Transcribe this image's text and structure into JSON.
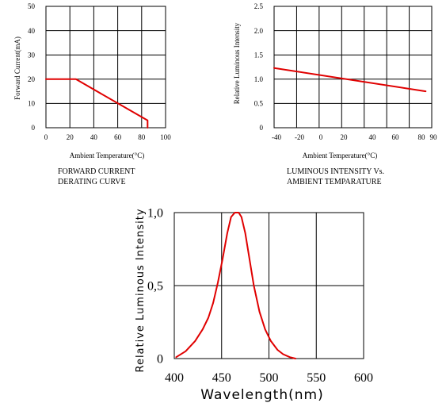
{
  "chart_data": [
    {
      "type": "line",
      "caption": [
        "FORWARD CURRENT",
        "DERATING CURVE"
      ],
      "xlabel": "Ambient Temperature(°C)",
      "ylabel": "Forward Current(mA)",
      "xlim": [
        0,
        100
      ],
      "ylim": [
        0,
        50
      ],
      "xticks": [
        "0",
        "20",
        "40",
        "60",
        "80",
        "100"
      ],
      "yticks": [
        "0",
        "10",
        "20",
        "30",
        "40",
        "50"
      ],
      "grid": true,
      "series": [
        {
          "x": [
            0,
            25,
            85,
            85
          ],
          "y": [
            20,
            20,
            3,
            0
          ],
          "color": "#e00000"
        }
      ]
    },
    {
      "type": "line",
      "caption": [
        "LUMINOUS INTENSITY Vs.",
        "AMBIENT TEMPARATURE"
      ],
      "xlabel": "Ambient Temperature(°C)",
      "ylabel": "Relative Luminous Intensity",
      "xlim": [
        -40,
        90
      ],
      "ylim": [
        0,
        2.5
      ],
      "xticks": [
        "-40",
        "-20",
        "0",
        "20",
        "40",
        "60",
        "80",
        "90"
      ],
      "yticks": [
        "0",
        "0.5",
        "1.0",
        "1.5",
        "2.0",
        "2.5"
      ],
      "grid": true,
      "series": [
        {
          "x": [
            -40,
            85
          ],
          "y": [
            1.23,
            0.75
          ],
          "color": "#e00000"
        }
      ]
    },
    {
      "type": "line",
      "xlabel": "Wavelength(nm)",
      "ylabel": "Relative  Luminous  Intensity",
      "xlim": [
        400,
        600
      ],
      "ylim": [
        0,
        1.0
      ],
      "xticks": [
        "400",
        "450",
        "500",
        "550",
        "600"
      ],
      "yticks": [
        "0",
        "0,5",
        "1,0"
      ],
      "grid": true,
      "series": [
        {
          "x": [
            402,
            412,
            422,
            430,
            436,
            441,
            446,
            451,
            456,
            460,
            464,
            468,
            471,
            475,
            479,
            484,
            490,
            496,
            502,
            509,
            515,
            522,
            528
          ],
          "y": [
            0.01,
            0.05,
            0.12,
            0.2,
            0.28,
            0.38,
            0.52,
            0.68,
            0.86,
            0.97,
            1.0,
            1.0,
            0.97,
            0.86,
            0.7,
            0.5,
            0.32,
            0.2,
            0.12,
            0.06,
            0.03,
            0.01,
            0.0
          ],
          "color": "#e00000"
        }
      ]
    }
  ]
}
